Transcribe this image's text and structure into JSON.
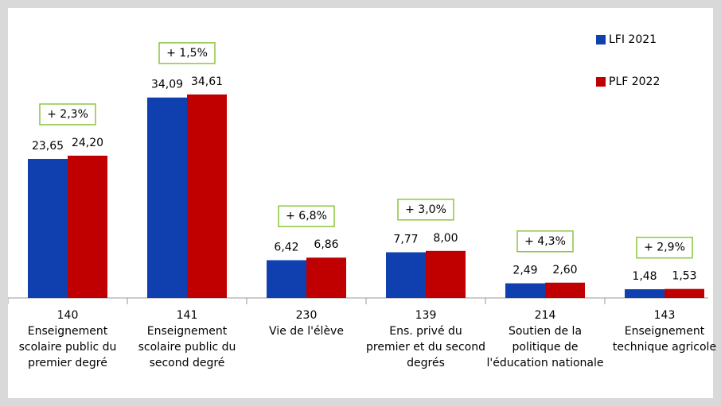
{
  "chart_data": {
    "type": "bar",
    "category_codes": [
      "140",
      "141",
      "230",
      "139",
      "214",
      "143"
    ],
    "categories": [
      "Enseignement scolaire public du premier degré",
      "Enseignement scolaire public du second degré",
      "Vie de l'élève",
      "Ens. privé du premier et du second degrés",
      "Soutien de la politique de l'éducation nationale",
      "Enseignement technique agricole"
    ],
    "series": [
      {
        "name": "LFI 2021",
        "color": "#1040b0",
        "values": [
          23.65,
          34.09,
          6.42,
          7.77,
          2.49,
          1.48
        ],
        "value_labels": [
          "23,65",
          "34,09",
          "6,42",
          "7,77",
          "2,49",
          "1,48"
        ]
      },
      {
        "name": "PLF 2022",
        "color": "#c00000",
        "values": [
          24.2,
          34.61,
          6.86,
          8.0,
          2.6,
          1.53
        ],
        "value_labels": [
          "24,20",
          "34,61",
          "6,86",
          "8,00",
          "2,60",
          "1,53"
        ]
      }
    ],
    "annotations": [
      "+ 2,3%",
      "+ 1,5%",
      "+ 6,8%",
      "+ 3,0%",
      "+ 4,3%",
      "+ 2,9%"
    ],
    "annotation_color": "#8cc63f",
    "ylim": [
      0,
      40
    ],
    "legend": "top-right"
  }
}
